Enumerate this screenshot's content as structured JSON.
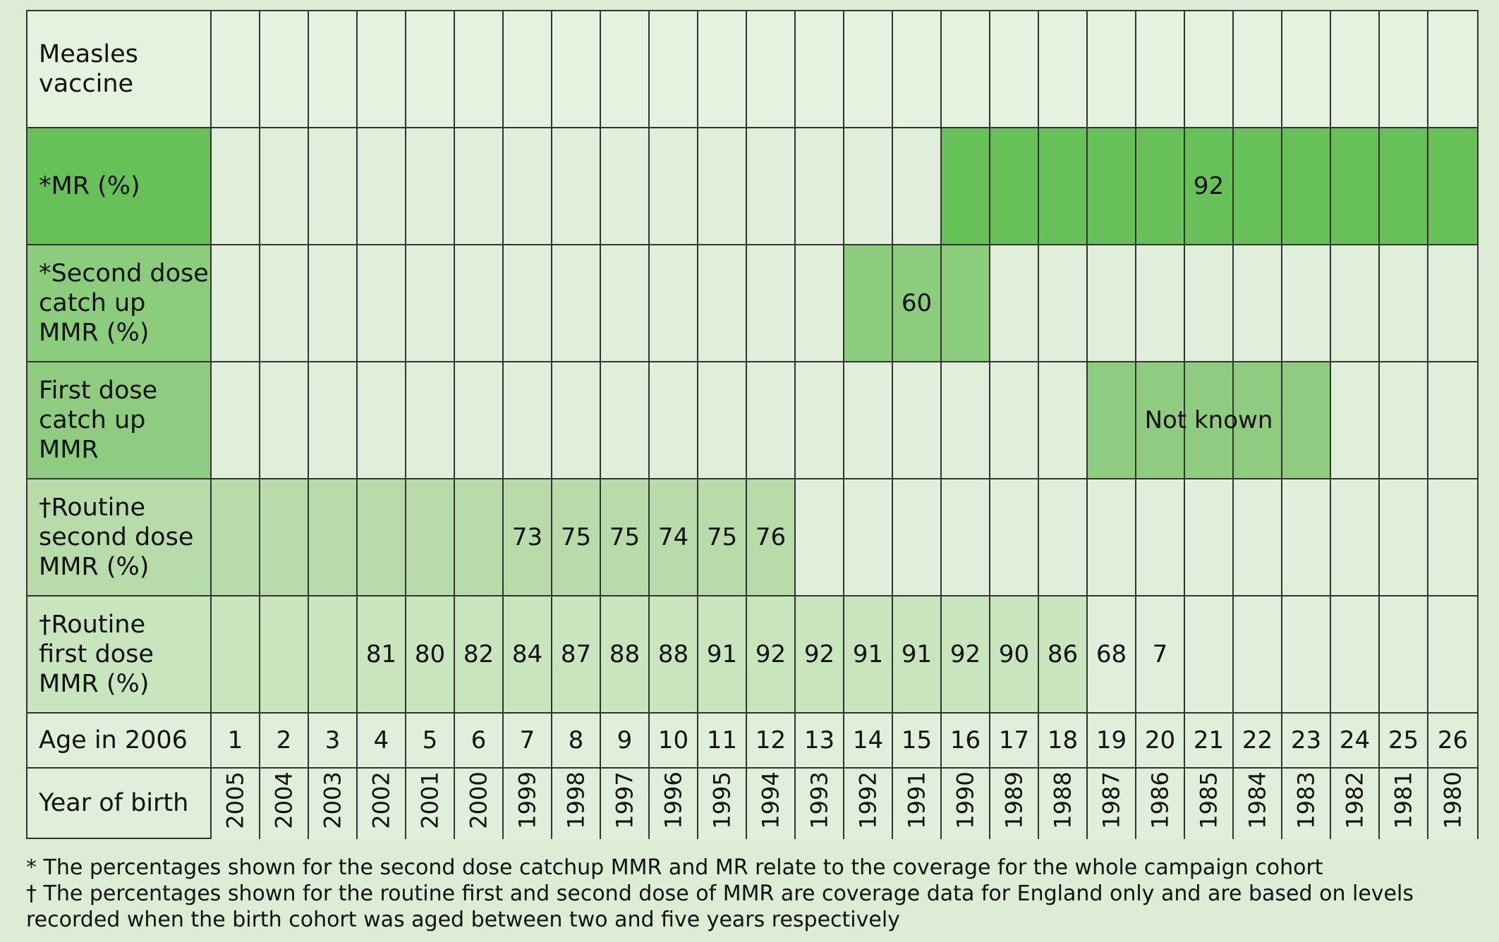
{
  "rows": [
    {
      "key": "measles",
      "label": "Measles\nvaccine"
    },
    {
      "key": "mr",
      "label": "*MR (%)"
    },
    {
      "key": "second",
      "label": "*Second dose\ncatch up\nMMR (%)"
    },
    {
      "key": "first",
      "label": "First dose\ncatch up MMR"
    },
    {
      "key": "r2",
      "label": "†Routine\nsecond dose\nMMR (%)"
    },
    {
      "key": "r1",
      "label": "†Routine\nfirst dose\nMMR (%)"
    },
    {
      "key": "age",
      "label": "Age in 2006"
    },
    {
      "key": "year",
      "label": "Year of birth"
    }
  ],
  "ages": [
    "1",
    "2",
    "3",
    "4",
    "5",
    "6",
    "7",
    "8",
    "9",
    "10",
    "11",
    "12",
    "13",
    "14",
    "15",
    "16",
    "17",
    "18",
    "19",
    "20",
    "21",
    "22",
    "23",
    "24",
    "25",
    "26"
  ],
  "years": [
    "2005",
    "2004",
    "2003",
    "2002",
    "2001",
    "2000",
    "1999",
    "1998",
    "1997",
    "1996",
    "1995",
    "1994",
    "1993",
    "1992",
    "1991",
    "1990",
    "1989",
    "1988",
    "1987",
    "1986",
    "1985",
    "1984",
    "1983",
    "1982",
    "1981",
    "1980"
  ],
  "routine_second_dose": [
    "",
    "",
    "",
    "",
    "",
    "",
    "73",
    "75",
    "75",
    "74",
    "75",
    "76",
    "",
    "",
    "",
    "",
    "",
    "",
    "",
    "",
    "",
    "",
    "",
    "",
    "",
    ""
  ],
  "routine_first_dose": [
    "",
    "",
    "",
    "81",
    "80",
    "82",
    "84",
    "87",
    "88",
    "88",
    "91",
    "92",
    "92",
    "91",
    "91",
    "92",
    "90",
    "86",
    "68",
    "7",
    "",
    "",
    "",
    "",
    "",
    ""
  ],
  "mr_campaign": {
    "value": "92",
    "ages": "16-26"
  },
  "second_dose_catchup": {
    "value": "60",
    "ages": "14-16"
  },
  "first_dose_catchup": {
    "value": "Not known",
    "ages": "19-23"
  },
  "notes": {
    "star": "* The percentages shown for the second dose catchup MMR and MR relate to the coverage for the whole campaign cohort",
    "dagger": "† The percentages shown for the routine first and second dose of MMR are coverage data for England only and are based on levels recorded when the birth cohort was aged between two and five years respectively"
  },
  "colors": {
    "background": "#dcecd5",
    "mr_band": "#68c058",
    "second_dose_band": "#8ccd7d",
    "first_dose_band": "#8fcc7f",
    "routine_second_band": "#b7dca9",
    "routine_first_band": "#c9e5bd"
  }
}
